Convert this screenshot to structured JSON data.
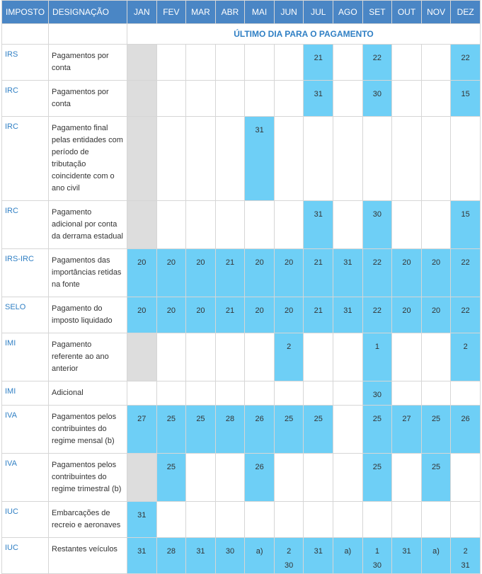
{
  "header": {
    "columns": [
      "IMPOSTO",
      "DESIGNAÇÃO",
      "JAN",
      "FEV",
      "MAR",
      "ABR",
      "MAI",
      "JUN",
      "JUL",
      "AGO",
      "SET",
      "OUT",
      "NOV",
      "DEZ"
    ],
    "subtitle": "ÚLTIMO DIA PARA O PAGAMENTO"
  },
  "rows": [
    {
      "imposto": "IRS",
      "designacao": "Pagamentos por conta",
      "jan_grey": true,
      "cells": [
        null,
        null,
        null,
        null,
        null,
        null,
        "21",
        null,
        "22",
        null,
        null,
        "22"
      ]
    },
    {
      "imposto": "IRC",
      "designacao": "Pagamentos por conta",
      "jan_grey": true,
      "cells": [
        null,
        null,
        null,
        null,
        null,
        null,
        "31",
        null,
        "30",
        null,
        null,
        "15"
      ]
    },
    {
      "imposto": "IRC",
      "designacao": "Pagamento final pelas entidades com período de tributação coincidente com o ano civil",
      "jan_grey": true,
      "cells": [
        null,
        null,
        null,
        null,
        "31",
        null,
        null,
        null,
        null,
        null,
        null,
        null
      ]
    },
    {
      "imposto": "IRC",
      "designacao": "Pagamento adicional por conta da derrama estadual",
      "jan_grey": true,
      "cells": [
        null,
        null,
        null,
        null,
        null,
        null,
        "31",
        null,
        "30",
        null,
        null,
        "15"
      ]
    },
    {
      "imposto": "IRS-IRC",
      "designacao": "Pagamentos das importâncias retidas na fonte",
      "jan_grey": false,
      "cells": [
        "20",
        "20",
        "20",
        "21",
        "20",
        "20",
        "21",
        "31",
        "22",
        "20",
        "20",
        "22"
      ]
    },
    {
      "imposto": "SELO",
      "designacao": "Pagamento do imposto liquidado",
      "jan_grey": false,
      "cells": [
        "20",
        "20",
        "20",
        "21",
        "20",
        "20",
        "21",
        "31",
        "22",
        "20",
        "20",
        "22"
      ]
    },
    {
      "imposto": "IMI",
      "designacao": "Pagamento referente ao ano anterior",
      "jan_grey": true,
      "cells": [
        null,
        null,
        null,
        null,
        null,
        "2",
        null,
        null,
        "1",
        null,
        null,
        "2"
      ]
    },
    {
      "imposto": "IMI",
      "designacao": "Adicional",
      "jan_grey": false,
      "cells": [
        null,
        null,
        null,
        null,
        null,
        null,
        null,
        null,
        "30",
        null,
        null,
        null
      ]
    },
    {
      "imposto": "IVA",
      "designacao": "Pagamentos pelos contribuintes do regime mensal (b)",
      "jan_grey": false,
      "cells": [
        "27",
        "25",
        "25",
        "28",
        "26",
        "25",
        "25",
        null,
        "25",
        "27",
        "25",
        "26"
      ]
    },
    {
      "imposto": "IVA",
      "designacao": "Pagamentos pelos contribuintes do regime trimestral (b)",
      "jan_grey": true,
      "cells": [
        null,
        "25",
        null,
        null,
        "26",
        null,
        null,
        null,
        "25",
        null,
        "25",
        null
      ]
    },
    {
      "imposto": "IUC",
      "designacao": "Embarcações de recreio e aeronaves",
      "jan_grey": false,
      "cells": [
        "31",
        null,
        null,
        null,
        null,
        null,
        null,
        null,
        null,
        null,
        null,
        null
      ]
    },
    {
      "imposto": "IUC",
      "designacao": "Restantes veículos",
      "jan_grey": false,
      "cells": [
        "31",
        "28",
        "31",
        "30",
        "a)",
        "2\n30",
        "31",
        "a)",
        "1\n30",
        "31",
        "a)",
        "2\n31"
      ]
    }
  ]
}
